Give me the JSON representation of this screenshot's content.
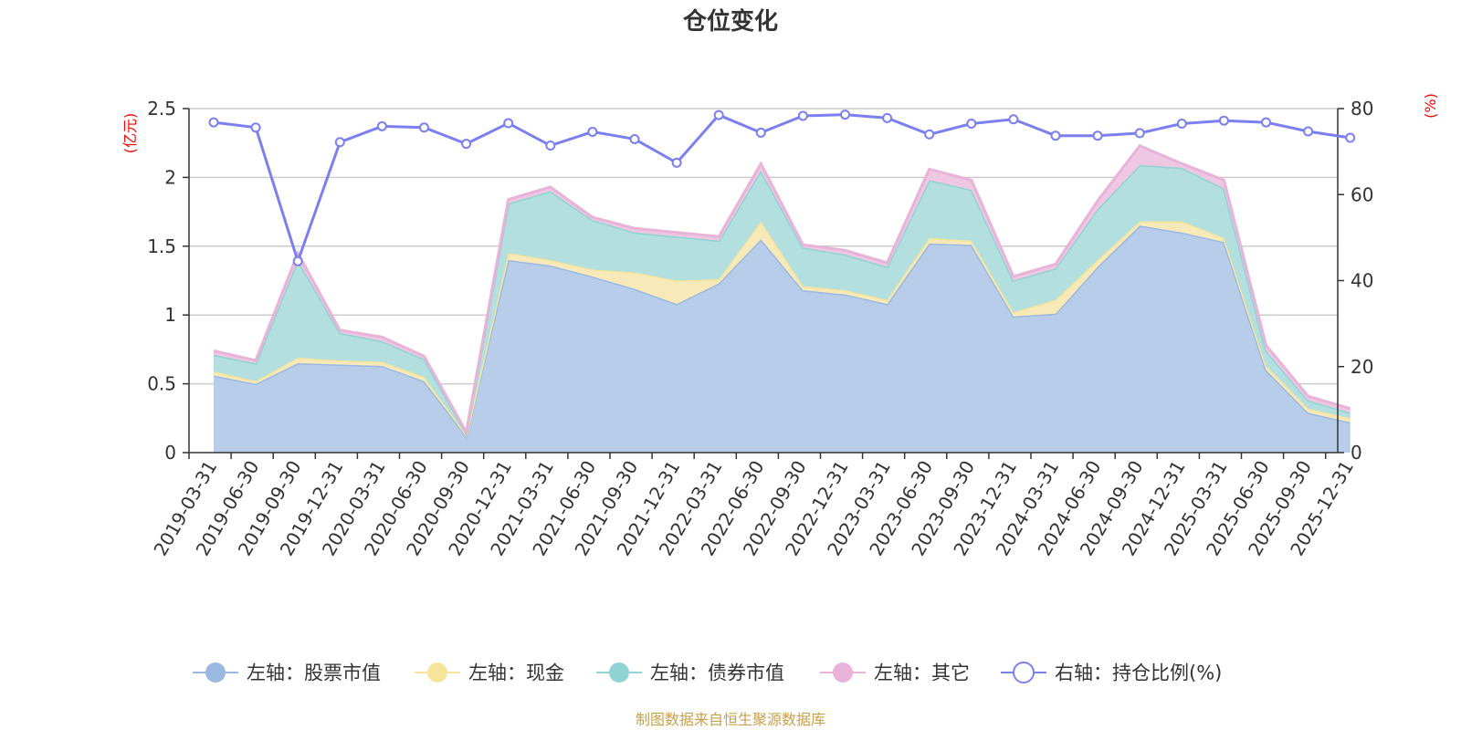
{
  "chart_data": {
    "type": "area",
    "title": "仓位变化",
    "left_axis_unit": "(亿元)",
    "right_axis_unit": "(%)",
    "ylim_left": [
      0,
      2.5
    ],
    "yticks_left": [
      0,
      0.5,
      1,
      1.5,
      2,
      2.5
    ],
    "yticks_left_labels": [
      "0",
      "0.5",
      "1",
      "1.5",
      "2",
      "2.5"
    ],
    "ylim_right": [
      0,
      80
    ],
    "yticks_right": [
      0,
      20,
      40,
      60,
      80
    ],
    "yticks_right_labels": [
      "0",
      "20",
      "40",
      "60",
      "80"
    ],
    "categories": [
      "2019-03-31",
      "2019-06-30",
      "2019-09-30",
      "2019-12-31",
      "2020-03-31",
      "2020-06-30",
      "2020-09-30",
      "2020-12-31",
      "2021-03-31",
      "2021-06-30",
      "2021-09-30",
      "2021-12-31",
      "2022-03-31",
      "2022-06-30",
      "2022-09-30",
      "2022-12-31",
      "2023-03-31",
      "2023-06-30",
      "2023-09-30",
      "2023-12-31",
      "2024-03-31",
      "2024-06-30",
      "2024-09-30",
      "2024-12-31",
      "2025-03-31",
      "2025-06-30",
      "2025-09-30",
      "2025-12-31"
    ],
    "stacked_series": [
      {
        "name": "左轴：股票市值",
        "color": "#9bb8e0",
        "fill": "#b8cdea",
        "values": [
          0.56,
          0.5,
          0.65,
          0.64,
          0.63,
          0.52,
          0.12,
          1.4,
          1.36,
          1.28,
          1.19,
          1.08,
          1.23,
          1.55,
          1.18,
          1.15,
          1.08,
          1.52,
          1.51,
          0.99,
          1.01,
          1.35,
          1.65,
          1.6,
          1.53,
          0.6,
          0.29,
          0.22
        ]
      },
      {
        "name": "左轴：现金",
        "color": "#f7e49c",
        "fill": "#f8eab8",
        "values": [
          0.03,
          0.02,
          0.04,
          0.03,
          0.03,
          0.03,
          0.01,
          0.05,
          0.04,
          0.05,
          0.12,
          0.17,
          0.03,
          0.13,
          0.03,
          0.03,
          0.03,
          0.04,
          0.03,
          0.03,
          0.1,
          0.05,
          0.03,
          0.08,
          0.03,
          0.03,
          0.03,
          0.03
        ]
      },
      {
        "name": "左轴：债券市值",
        "color": "#8fd3d3",
        "fill": "#b3e0df",
        "values": [
          0.12,
          0.13,
          0.71,
          0.2,
          0.15,
          0.13,
          0.01,
          0.36,
          0.5,
          0.36,
          0.29,
          0.32,
          0.28,
          0.37,
          0.28,
          0.26,
          0.24,
          0.42,
          0.37,
          0.23,
          0.23,
          0.37,
          0.41,
          0.39,
          0.36,
          0.11,
          0.06,
          0.04
        ]
      },
      {
        "name": "左轴：其它",
        "color": "#e9b3d9",
        "fill": "#eec7e2",
        "values": [
          0.03,
          0.02,
          0.05,
          0.02,
          0.03,
          0.02,
          0.01,
          0.03,
          0.03,
          0.02,
          0.03,
          0.03,
          0.03,
          0.05,
          0.02,
          0.03,
          0.03,
          0.08,
          0.07,
          0.03,
          0.03,
          0.06,
          0.14,
          0.03,
          0.06,
          0.04,
          0.03,
          0.03
        ]
      }
    ],
    "line_series": {
      "name": "右轴：持仓比例(%)",
      "color": "#7b7ff0",
      "axis": "right",
      "values": [
        76.8,
        75.6,
        44.5,
        72.2,
        75.9,
        75.6,
        71.8,
        76.6,
        71.4,
        74.6,
        72.9,
        67.4,
        78.5,
        74.4,
        78.3,
        78.6,
        77.8,
        74.0,
        76.5,
        77.5,
        73.7,
        73.7,
        74.3,
        76.5,
        77.2,
        76.8,
        74.7,
        73.2
      ]
    },
    "source": "制图数据来自恒生聚源数据库"
  }
}
